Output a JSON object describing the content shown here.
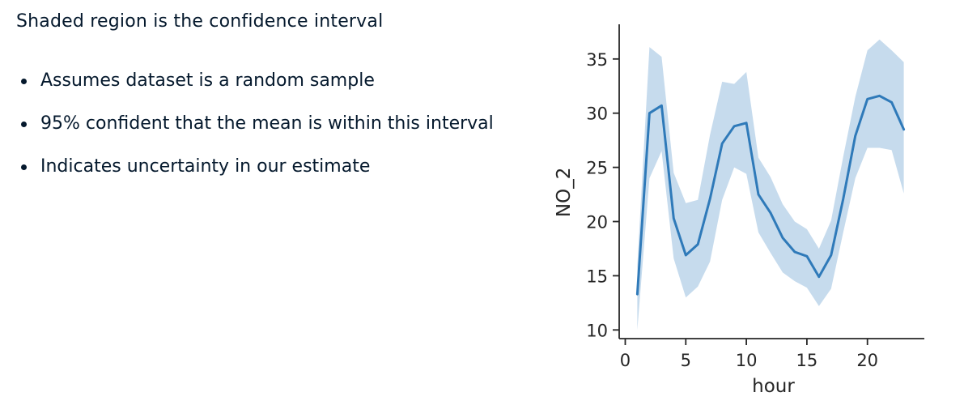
{
  "slide": {
    "heading": "Shaded region is the confidence interval",
    "bullets": [
      "Assumes dataset is a random sample",
      "95% confident that the mean is within this interval",
      "Indicates uncertainty in our estimate"
    ]
  },
  "chart_data": {
    "type": "line",
    "title": "",
    "xlabel": "hour",
    "ylabel": "NO_2",
    "xlim": [
      -0.5,
      24.7
    ],
    "ylim": [
      9.2,
      38.2
    ],
    "xticks": [
      0,
      5,
      10,
      15,
      20
    ],
    "yticks": [
      10,
      15,
      20,
      25,
      30,
      35
    ],
    "grid": false,
    "colors": {
      "line": "#2f7ab9",
      "band": "#a8c8e4",
      "axis": "#262626"
    },
    "series": [
      {
        "x": [
          1,
          2,
          3,
          4,
          5,
          6,
          7,
          8,
          9,
          10,
          11,
          12,
          13,
          14,
          15,
          16,
          17,
          18,
          19,
          20,
          21,
          22,
          23
        ],
        "mean": [
          13.3,
          30.0,
          30.7,
          20.3,
          16.9,
          17.9,
          22.1,
          27.2,
          28.8,
          29.1,
          22.5,
          20.8,
          18.5,
          17.2,
          16.8,
          14.9,
          16.9,
          22.1,
          27.9,
          31.3,
          31.6,
          31.0,
          28.5
        ],
        "ci_low": [
          10.0,
          24.0,
          26.5,
          16.6,
          13.0,
          14.0,
          16.3,
          22.0,
          25.0,
          24.4,
          19.0,
          17.1,
          15.3,
          14.5,
          13.9,
          12.2,
          13.8,
          19.0,
          24.0,
          26.8,
          26.8,
          26.6,
          22.6
        ],
        "ci_high": [
          15.9,
          36.1,
          35.2,
          24.5,
          21.7,
          22.0,
          28.0,
          32.9,
          32.7,
          33.8,
          25.9,
          24.1,
          21.6,
          20.0,
          19.3,
          17.5,
          20.1,
          26.0,
          31.5,
          35.8,
          36.8,
          35.8,
          34.7
        ]
      }
    ]
  }
}
